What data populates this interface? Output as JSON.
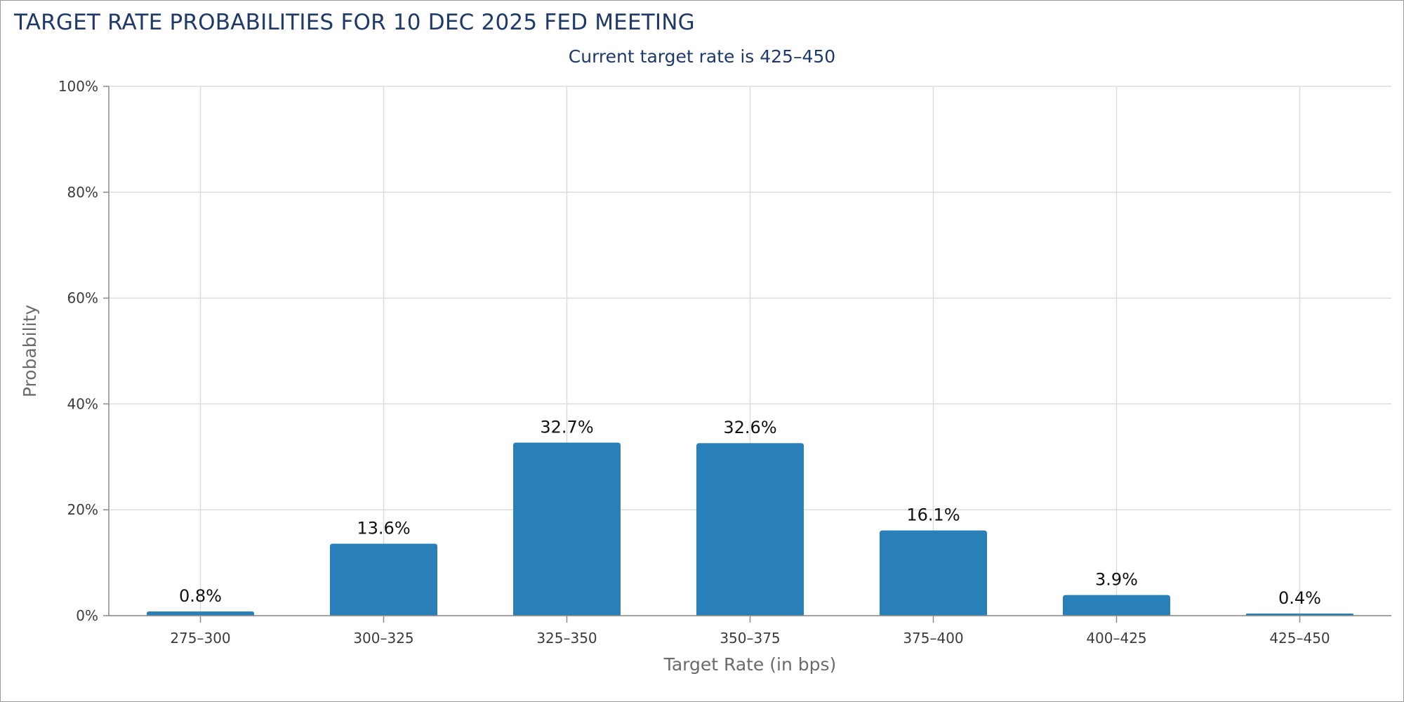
{
  "chart_data": {
    "type": "bar",
    "title": "TARGET RATE PROBABILITIES FOR 10 DEC 2025 FED MEETING",
    "subtitle": "Current target rate is 425–450",
    "xlabel": "Target Rate (in bps)",
    "ylabel": "Probability",
    "categories": [
      "275–300",
      "300–325",
      "325–350",
      "350–375",
      "375–400",
      "400–425",
      "425–450"
    ],
    "values": [
      0.8,
      13.6,
      32.7,
      32.6,
      16.1,
      3.9,
      0.4
    ],
    "data_labels": [
      "0.8%",
      "13.6%",
      "32.7%",
      "32.6%",
      "16.1%",
      "3.9%",
      "0.4%"
    ],
    "ylim": [
      0,
      100
    ],
    "yticks": [
      0,
      20,
      40,
      60,
      80,
      100
    ],
    "ytick_labels": [
      "0%",
      "20%",
      "40%",
      "60%",
      "80%",
      "100%"
    ],
    "grid": true,
    "bar_color": "#2980b9",
    "grid_color": "#dcdcdc"
  }
}
